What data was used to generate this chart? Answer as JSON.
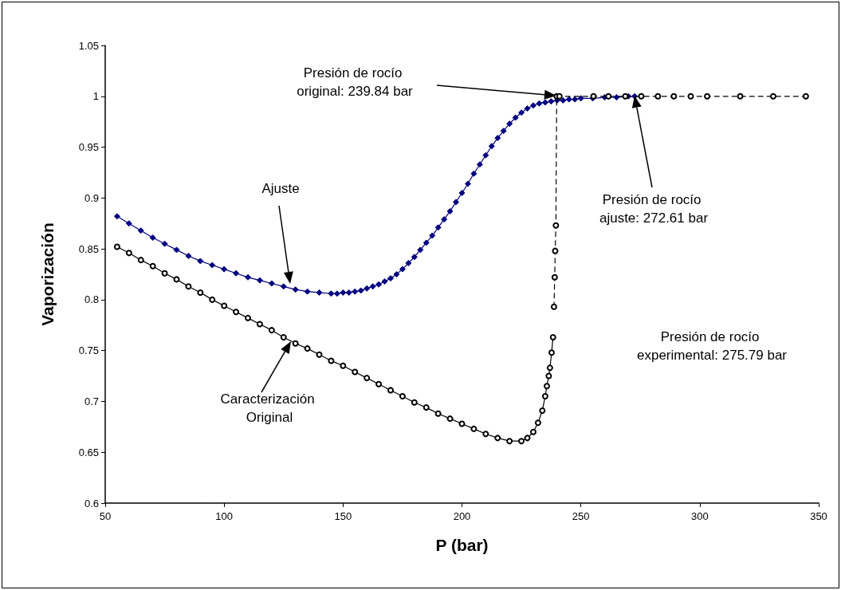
{
  "chart_data": {
    "type": "line",
    "xlabel": "P (bar)",
    "ylabel": "Vaporización",
    "xlim": [
      50,
      350
    ],
    "xticks": [
      50,
      100,
      150,
      200,
      250,
      300,
      350
    ],
    "ylim": [
      0.6,
      1.05
    ],
    "yticks": [
      0.6,
      0.65,
      0.7,
      0.75,
      0.8,
      0.85,
      0.9,
      0.95,
      1,
      1.05
    ],
    "grid": false,
    "series": [
      {
        "color": "#000080",
        "marker": "diamond",
        "line_style": "solid",
        "x": [
          55,
          60,
          65,
          70,
          75,
          80,
          85,
          90,
          95,
          100,
          105,
          110,
          115,
          120,
          125,
          130,
          135,
          140,
          145,
          147.5,
          150,
          152.5,
          155,
          157.5,
          160,
          162.5,
          165,
          167.5,
          170,
          172.5,
          175,
          177.5,
          180,
          182.5,
          185,
          187.5,
          190,
          192.5,
          195,
          197.5,
          200,
          202.5,
          205,
          207.5,
          210,
          212.5,
          215,
          217.5,
          220,
          222.5,
          225,
          227.5,
          230,
          232.5,
          235,
          237.5,
          240,
          242.5,
          245,
          247.5,
          250,
          255,
          260,
          265,
          270,
          272.61
        ],
        "values": [
          0.882,
          0.875,
          0.868,
          0.861,
          0.855,
          0.849,
          0.843,
          0.838,
          0.834,
          0.83,
          0.826,
          0.822,
          0.819,
          0.816,
          0.813,
          0.81,
          0.808,
          0.807,
          0.806,
          0.806,
          0.807,
          0.807,
          0.808,
          0.809,
          0.811,
          0.813,
          0.815,
          0.818,
          0.821,
          0.825,
          0.83,
          0.836,
          0.842,
          0.849,
          0.856,
          0.863,
          0.871,
          0.879,
          0.887,
          0.896,
          0.905,
          0.914,
          0.924,
          0.933,
          0.942,
          0.951,
          0.959,
          0.966,
          0.973,
          0.979,
          0.984,
          0.988,
          0.991,
          0.993,
          0.994,
          0.995,
          0.996,
          0.996,
          0.997,
          0.997,
          0.998,
          0.998,
          0.999,
          0.999,
          1.0,
          1.0
        ]
      },
      {
        "color": "#000000",
        "marker": "circle",
        "line_style": "solid",
        "x": [
          55,
          60,
          65,
          70,
          75,
          80,
          85,
          90,
          95,
          100,
          105,
          110,
          115,
          120,
          125,
          130,
          135,
          140,
          145,
          150,
          155,
          160,
          165,
          170,
          175,
          180,
          185,
          190,
          195,
          200,
          205,
          210,
          215,
          220,
          225,
          227.5,
          230,
          232,
          233.8,
          235,
          235.7,
          236.5,
          237,
          237.7,
          238.3
        ],
        "values": [
          0.852,
          0.846,
          0.839,
          0.833,
          0.826,
          0.82,
          0.813,
          0.807,
          0.8,
          0.794,
          0.788,
          0.782,
          0.776,
          0.77,
          0.763,
          0.757,
          0.752,
          0.746,
          0.74,
          0.735,
          0.729,
          0.723,
          0.717,
          0.711,
          0.705,
          0.699,
          0.694,
          0.688,
          0.683,
          0.678,
          0.673,
          0.668,
          0.664,
          0.661,
          0.661,
          0.664,
          0.67,
          0.679,
          0.691,
          0.705,
          0.715,
          0.725,
          0.733,
          0.748,
          0.763
        ]
      },
      {
        "color": "#000000",
        "marker": "circle",
        "line_style": "dashed",
        "x": [
          238.7,
          239,
          239.2,
          239.5,
          239.84,
          241,
          255.3,
          261.6,
          268.7,
          275.4,
          282.4,
          289.1,
          296.2,
          303.1,
          317,
          330.9,
          344.6
        ],
        "values": [
          0.793,
          0.822,
          0.848,
          0.873,
          1,
          1,
          1,
          1,
          1,
          1,
          1,
          1,
          1,
          1,
          1,
          1,
          1
        ]
      }
    ],
    "annotations": [
      "Presión de rocío original: 239.84 bar",
      "Presión de rocío ajuste: 272.61 bar",
      "Presión de rocío experimental: 275.79 bar",
      "Ajuste",
      "Caracterización Original"
    ]
  }
}
